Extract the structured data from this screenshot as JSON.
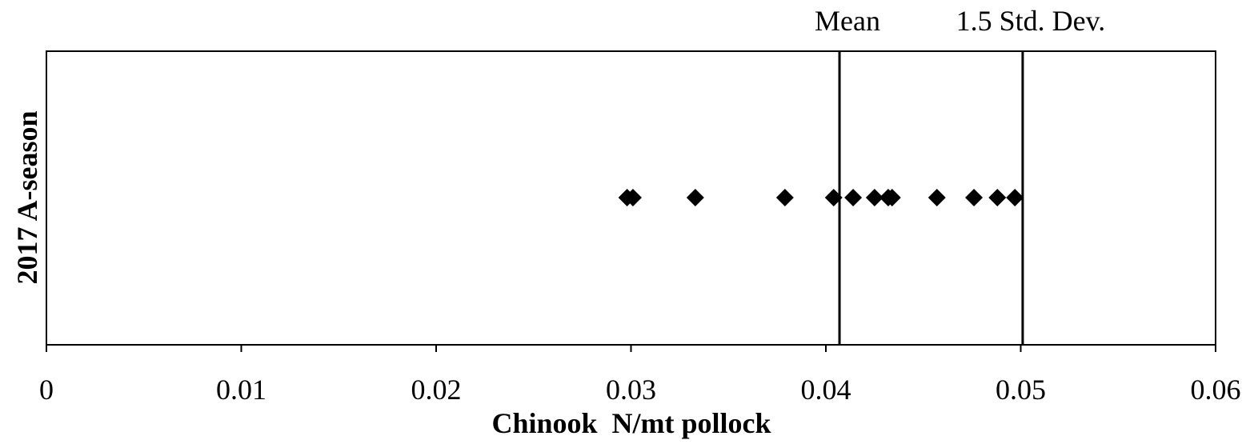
{
  "chart_data": {
    "type": "scatter",
    "title": "",
    "xlabel": "Chinook  N/mt pollock",
    "ylabel": "2017 A-season",
    "xlim": [
      0,
      0.06
    ],
    "x_ticks": [
      0,
      0.01,
      0.02,
      0.03,
      0.04,
      0.05,
      0.06
    ],
    "x_tick_labels": [
      "0",
      "0.01",
      "0.02",
      "0.03",
      "0.04",
      "0.05",
      "0.06"
    ],
    "y_ticks": [],
    "grid": false,
    "legend": "none",
    "marker": "diamond",
    "series": [
      {
        "values": [
          0.0298,
          0.0301,
          0.0333,
          0.0379,
          0.0404,
          0.0414,
          0.0425,
          0.0432,
          0.0434,
          0.0457,
          0.0476,
          0.0488,
          0.0497
        ]
      }
    ],
    "reference_lines": [
      {
        "label": "Mean",
        "x": 0.0407
      },
      {
        "label": "1.5 Std. Dev.",
        "x": 0.0501
      }
    ],
    "colors": {
      "marker": "#000000",
      "line": "#000000",
      "frame": "#000000",
      "background": "#ffffff"
    }
  }
}
